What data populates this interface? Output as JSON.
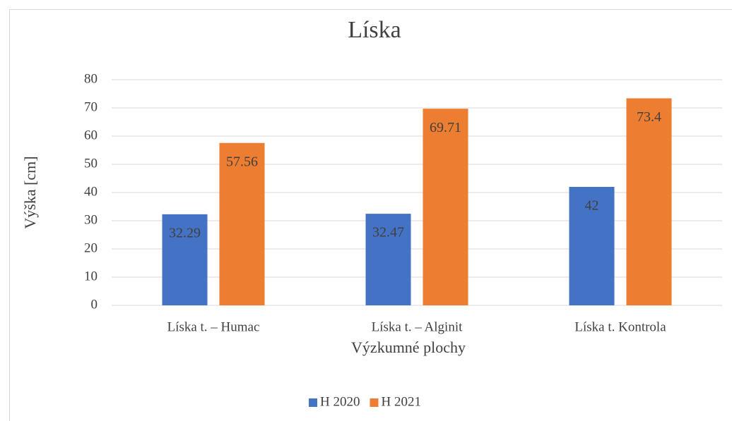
{
  "chart_data": {
    "type": "bar",
    "title": "Líska",
    "y_label": "Výška [cm]",
    "x_label": "Výzkumné plochy",
    "categories": [
      "Líska t. – Humac",
      "Líska t. – Alginit",
      "Líska t. Kontrola"
    ],
    "series": [
      {
        "name": "H 2020",
        "color": "#4472c4",
        "values": [
          32.29,
          32.47,
          42
        ]
      },
      {
        "name": "H 2021",
        "color": "#ed7d31",
        "values": [
          57.56,
          69.71,
          73.4
        ]
      }
    ],
    "ylim": [
      0,
      80
    ],
    "yticks": [
      0,
      10,
      20,
      30,
      40,
      50,
      60,
      70,
      80
    ],
    "grid": true,
    "legend": "bottom"
  }
}
